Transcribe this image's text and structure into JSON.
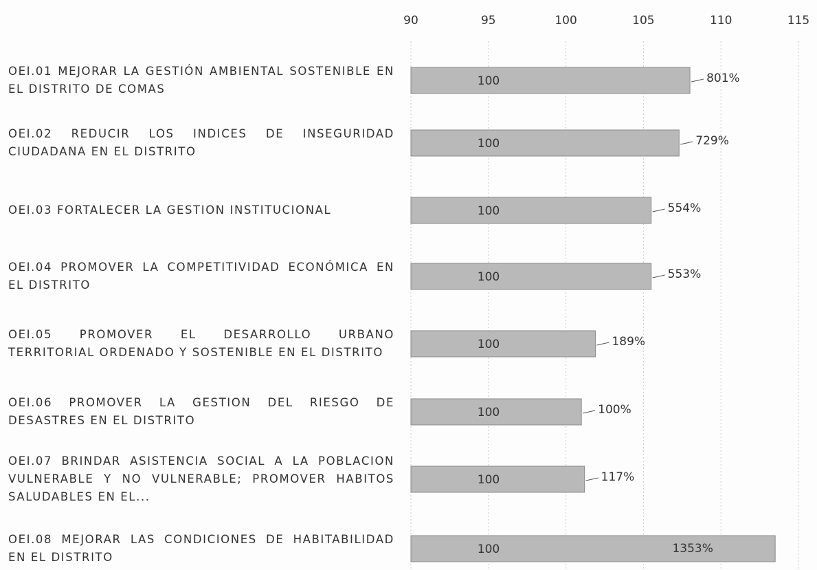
{
  "chart_data": {
    "type": "barh",
    "categories": [
      "OEI.01 MEJORAR LA GESTIÓN AMBIENTAL SOSTENIBLE EN EL DISTRITO DE COMAS",
      "OEI.02 REDUCIR LOS INDICES DE INSEGURIDAD CIUDADANA EN EL DISTRITO",
      "OEI.03 FORTALECER LA GESTION INSTITUCIONAL",
      "OEI.04 PROMOVER LA COMPETITIVIDAD ECONÓMICA EN EL DISTRITO",
      "OEI.05 PROMOVER EL DESARROLLO URBANO TERRITORIAL ORDENADO Y SOSTENIBLE EN EL DISTRITO",
      "OEI.06 PROMOVER LA GESTION DEL RIESGO DE DESASTRES EN EL DISTRITO",
      "OEI.07 BRINDAR ASISTENCIA SOCIAL A LA POBLACION VULNERABLE Y NO VULNERABLE; PROMOVER HABITOS SALUDABLES EN EL...",
      "OEI.08 MEJORAR LAS CONDICIONES DE HABITABILIDAD EN EL DISTRITO"
    ],
    "values": [
      108.0,
      107.3,
      105.5,
      105.5,
      101.9,
      101.0,
      101.2,
      113.5
    ],
    "inner_labels": [
      "100",
      "100",
      "100",
      "100",
      "100",
      "100",
      "100",
      "100"
    ],
    "bar_labels": [
      "801%",
      "729%",
      "554%",
      "553%",
      "189%",
      "100%",
      "117%",
      "1353%"
    ],
    "color": "#b9b9b9",
    "xlim": [
      90,
      115
    ],
    "xticks": [
      90,
      95,
      100,
      105,
      110,
      115
    ],
    "grid": true
  }
}
